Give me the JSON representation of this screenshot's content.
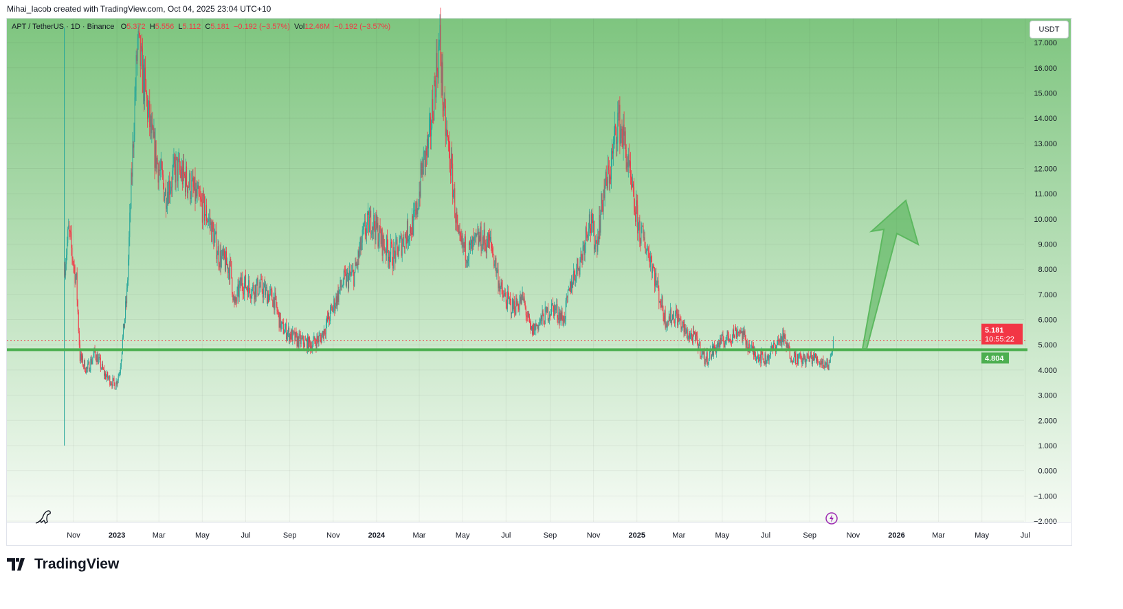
{
  "credit": "Mihai_Iacob created with TradingView.com, Oct 04, 2025 23:04 UTC+10",
  "legend": {
    "symbol": "APT / TetherUS · 1D · Binance",
    "o_label": "O",
    "o": "5.372",
    "h_label": "H",
    "h": "5.556",
    "l_label": "L",
    "l": "5.112",
    "c_label": "C",
    "c": "5.181",
    "change": "−0.192 (−3.57%)",
    "vol_label": "Vol",
    "vol": "12.46M",
    "vol_change": "−0.192 (−3.57%)"
  },
  "currency_button": "USDT",
  "brand": "TradingView",
  "colors": {
    "up": "#26a69a",
    "down": "#f23645",
    "support": "#4caf50",
    "bg_top": "#7ec57f"
  },
  "chart_data": {
    "type": "candlestick",
    "title": "APT / TetherUS · 1D · Binance",
    "ylim": [
      -2,
      17.9
    ],
    "y_ticks": [
      "17.000",
      "16.000",
      "15.000",
      "14.000",
      "13.000",
      "12.000",
      "11.000",
      "10.000",
      "9.000",
      "8.000",
      "7.000",
      "6.000",
      "5.000",
      "4.000",
      "3.000",
      "2.000",
      "1.000",
      "0.000",
      "−1.000",
      "−2.000"
    ],
    "x_ticks": [
      {
        "label": "Nov",
        "date": "2022-11-01"
      },
      {
        "label": "2023",
        "date": "2023-01-01",
        "bold": true
      },
      {
        "label": "Mar",
        "date": "2023-03-01"
      },
      {
        "label": "May",
        "date": "2023-05-01"
      },
      {
        "label": "Jul",
        "date": "2023-07-01"
      },
      {
        "label": "Sep",
        "date": "2023-09-01"
      },
      {
        "label": "Nov",
        "date": "2023-11-01"
      },
      {
        "label": "2024",
        "date": "2024-01-01",
        "bold": true
      },
      {
        "label": "Mar",
        "date": "2024-03-01"
      },
      {
        "label": "May",
        "date": "2024-05-01"
      },
      {
        "label": "Jul",
        "date": "2024-07-01"
      },
      {
        "label": "Sep",
        "date": "2024-09-01"
      },
      {
        "label": "Nov",
        "date": "2024-11-01"
      },
      {
        "label": "2025",
        "date": "2025-01-01",
        "bold": true
      },
      {
        "label": "Mar",
        "date": "2025-03-01"
      },
      {
        "label": "May",
        "date": "2025-05-01"
      },
      {
        "label": "Jul",
        "date": "2025-07-01"
      },
      {
        "label": "Sep",
        "date": "2025-09-01"
      },
      {
        "label": "Nov",
        "date": "2025-11-01"
      },
      {
        "label": "2026",
        "date": "2026-01-01",
        "bold": true
      },
      {
        "label": "Mar",
        "date": "2026-03-01"
      },
      {
        "label": "May",
        "date": "2026-05-01"
      },
      {
        "label": "Jul",
        "date": "2026-07-01"
      }
    ],
    "x_range": [
      "2022-09-06",
      "2026-07-05"
    ],
    "close_path": [
      [
        "2022-10-19",
        8
      ],
      [
        "2022-10-25",
        9.5
      ],
      [
        "2022-11-05",
        7.5
      ],
      [
        "2022-11-10",
        4.5
      ],
      [
        "2022-11-20",
        4.0
      ],
      [
        "2022-12-01",
        4.7
      ],
      [
        "2022-12-15",
        3.8
      ],
      [
        "2022-12-30",
        3.4
      ],
      [
        "2023-01-05",
        4.0
      ],
      [
        "2023-01-15",
        7
      ],
      [
        "2023-01-25",
        14
      ],
      [
        "2023-01-30",
        17
      ],
      [
        "2023-02-10",
        15
      ],
      [
        "2023-02-20",
        13
      ],
      [
        "2023-03-10",
        11
      ],
      [
        "2023-03-25",
        12
      ],
      [
        "2023-04-10",
        11.5
      ],
      [
        "2023-04-20",
        11
      ],
      [
        "2023-05-10",
        10
      ],
      [
        "2023-05-25",
        8.5
      ],
      [
        "2023-06-10",
        8
      ],
      [
        "2023-06-15",
        6.5
      ],
      [
        "2023-06-25",
        7.5
      ],
      [
        "2023-07-10",
        7.2
      ],
      [
        "2023-07-20",
        7.3
      ],
      [
        "2023-08-10",
        6.8
      ],
      [
        "2023-08-20",
        5.7
      ],
      [
        "2023-09-10",
        5.2
      ],
      [
        "2023-09-30",
        5.0
      ],
      [
        "2023-10-15",
        5.3
      ],
      [
        "2023-11-01",
        6.5
      ],
      [
        "2023-11-15",
        7.5
      ],
      [
        "2023-12-01",
        7.8
      ],
      [
        "2023-12-15",
        9.5
      ],
      [
        "2023-12-25",
        10
      ],
      [
        "2024-01-10",
        9
      ],
      [
        "2024-01-25",
        8.5
      ],
      [
        "2024-02-10",
        9.3
      ],
      [
        "2024-02-25",
        10
      ],
      [
        "2024-03-05",
        12
      ],
      [
        "2024-03-15",
        13
      ],
      [
        "2024-03-25",
        16
      ],
      [
        "2024-03-30",
        17
      ],
      [
        "2024-04-05",
        14
      ],
      [
        "2024-04-15",
        12
      ],
      [
        "2024-04-25",
        9
      ],
      [
        "2024-05-10",
        8.7
      ],
      [
        "2024-05-25",
        9.2
      ],
      [
        "2024-06-10",
        9
      ],
      [
        "2024-06-25",
        7
      ],
      [
        "2024-07-10",
        6.5
      ],
      [
        "2024-07-25",
        6.8
      ],
      [
        "2024-08-05",
        5.5
      ],
      [
        "2024-08-20",
        6.0
      ],
      [
        "2024-09-05",
        6.5
      ],
      [
        "2024-09-20",
        6
      ],
      [
        "2024-10-01",
        7.5
      ],
      [
        "2024-10-15",
        8.5
      ],
      [
        "2024-10-25",
        10
      ],
      [
        "2024-11-05",
        9
      ],
      [
        "2024-11-15",
        11
      ],
      [
        "2024-11-25",
        12
      ],
      [
        "2024-12-05",
        14
      ],
      [
        "2024-12-15",
        13
      ],
      [
        "2024-12-25",
        11
      ],
      [
        "2025-01-05",
        9.5
      ],
      [
        "2025-01-20",
        8.5
      ],
      [
        "2025-02-01",
        7
      ],
      [
        "2025-02-10",
        6
      ],
      [
        "2025-02-25",
        6.2
      ],
      [
        "2025-03-10",
        5.5
      ],
      [
        "2025-03-25",
        5.2
      ],
      [
        "2025-04-07",
        4.4
      ],
      [
        "2025-04-25",
        5
      ],
      [
        "2025-05-10",
        5.3
      ],
      [
        "2025-05-25",
        5.6
      ],
      [
        "2025-06-10",
        4.8
      ],
      [
        "2025-06-20",
        4.6
      ],
      [
        "2025-07-01",
        4.4
      ],
      [
        "2025-07-15",
        5.0
      ],
      [
        "2025-07-25",
        5.3
      ],
      [
        "2025-08-05",
        4.6
      ],
      [
        "2025-08-20",
        4.4
      ],
      [
        "2025-09-05",
        4.5
      ],
      [
        "2025-09-20",
        4.3
      ],
      [
        "2025-09-28",
        4.2
      ],
      [
        "2025-10-04",
        5.181
      ]
    ],
    "horizontal_line": {
      "value": 4.804,
      "label": "4.804"
    },
    "last_price": {
      "value": 5.181,
      "label": "5.181",
      "countdown": "10:55:22"
    },
    "annotation": "upward arrow projecting from support"
  }
}
